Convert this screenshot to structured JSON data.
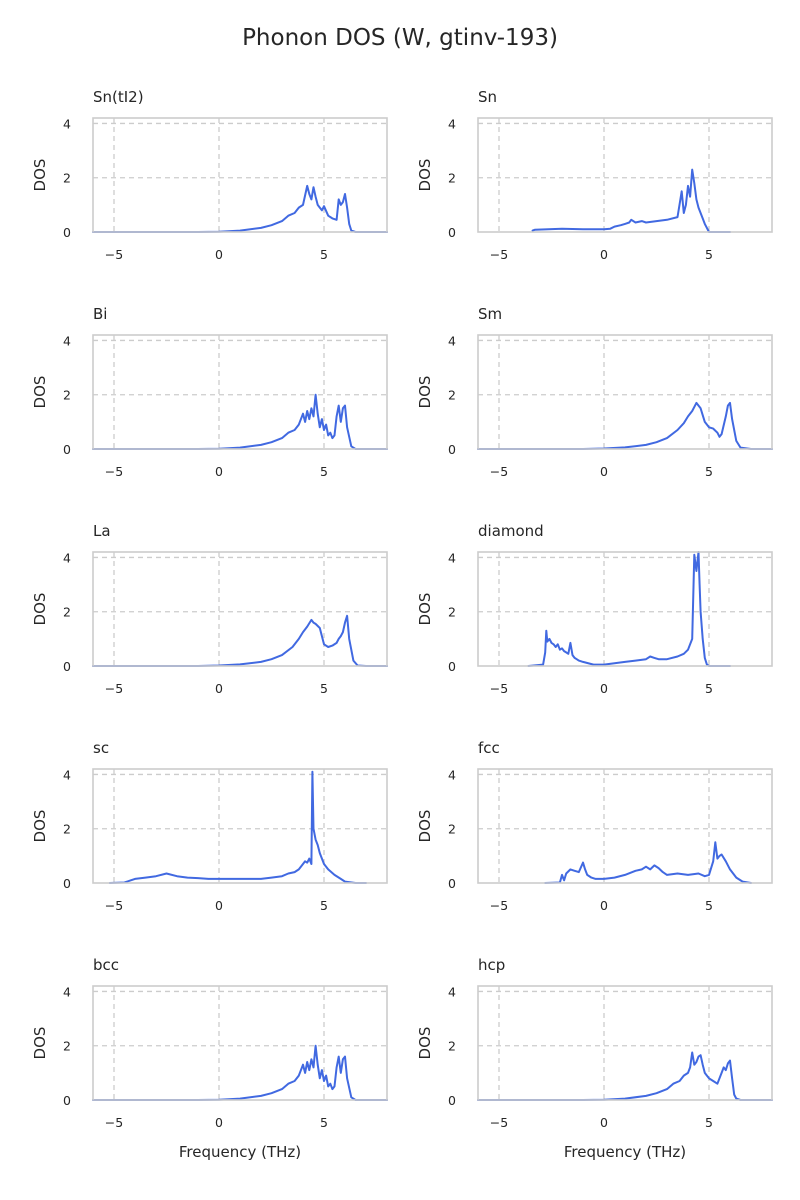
{
  "figure": {
    "title": "Phonon DOS (W, gtinv-193)"
  },
  "chart_data": [
    {
      "type": "line",
      "title": "Sn(tI2)",
      "ylabel": "DOS",
      "xlabel": "",
      "xlim": [
        -6,
        8
      ],
      "ylim": [
        0,
        4.2
      ],
      "xticks": [
        -5,
        0,
        5
      ],
      "yticks": [
        0,
        2,
        4
      ],
      "grid": true,
      "color": "#4169e1",
      "x": [
        -6,
        -1,
        0,
        1,
        2,
        2.5,
        3,
        3.3,
        3.6,
        3.8,
        4.0,
        4.2,
        4.3,
        4.4,
        4.5,
        4.6,
        4.7,
        4.8,
        4.9,
        5.0,
        5.2,
        5.4,
        5.6,
        5.7,
        5.8,
        5.9,
        6.0,
        6.1,
        6.2,
        6.3,
        6.5,
        7,
        8
      ],
      "y": [
        0,
        0,
        0.01,
        0.05,
        0.15,
        0.25,
        0.4,
        0.6,
        0.7,
        0.9,
        1.0,
        1.7,
        1.4,
        1.2,
        1.65,
        1.3,
        1.0,
        0.9,
        0.8,
        0.95,
        0.6,
        0.5,
        0.45,
        1.2,
        1.0,
        1.1,
        1.4,
        0.9,
        0.3,
        0.05,
        0,
        0,
        0
      ]
    },
    {
      "type": "line",
      "title": "Sn",
      "ylabel": "DOS",
      "xlabel": "",
      "xlim": [
        -6,
        8
      ],
      "ylim": [
        0,
        4.2
      ],
      "xticks": [
        -5,
        0,
        5
      ],
      "yticks": [
        0,
        2,
        4
      ],
      "grid": true,
      "color": "#4169e1",
      "x": [
        -3.4,
        -3.3,
        -2,
        -1,
        0,
        0.3,
        0.5,
        0.8,
        1.0,
        1.2,
        1.3,
        1.5,
        1.8,
        2,
        2.5,
        3,
        3.5,
        3.7,
        3.8,
        3.9,
        4.0,
        4.1,
        4.2,
        4.3,
        4.4,
        4.5,
        4.6,
        4.7,
        4.8,
        5.0,
        6.0
      ],
      "y": [
        0.05,
        0.08,
        0.12,
        0.1,
        0.1,
        0.12,
        0.2,
        0.25,
        0.3,
        0.35,
        0.45,
        0.35,
        0.4,
        0.35,
        0.4,
        0.45,
        0.55,
        1.5,
        0.7,
        1.0,
        1.7,
        1.3,
        2.3,
        1.8,
        1.2,
        0.9,
        0.7,
        0.5,
        0.3,
        0,
        0
      ]
    },
    {
      "type": "line",
      "title": "Bi",
      "ylabel": "DOS",
      "xlabel": "",
      "xlim": [
        -6,
        8
      ],
      "ylim": [
        0,
        4.2
      ],
      "xticks": [
        -5,
        0,
        5
      ],
      "yticks": [
        0,
        2,
        4
      ],
      "grid": true,
      "color": "#4169e1",
      "x": [
        -6,
        -1,
        0,
        1,
        2,
        2.5,
        3,
        3.3,
        3.6,
        3.8,
        4.0,
        4.1,
        4.2,
        4.3,
        4.4,
        4.5,
        4.6,
        4.7,
        4.8,
        4.9,
        5.0,
        5.1,
        5.2,
        5.3,
        5.4,
        5.5,
        5.6,
        5.7,
        5.8,
        5.9,
        6.0,
        6.1,
        6.3,
        6.5,
        7,
        8
      ],
      "y": [
        0,
        0,
        0.01,
        0.05,
        0.15,
        0.25,
        0.4,
        0.6,
        0.7,
        0.9,
        1.3,
        1.0,
        1.4,
        1.1,
        1.5,
        1.2,
        2.0,
        1.3,
        0.8,
        1.1,
        0.7,
        0.9,
        0.5,
        0.6,
        0.4,
        0.5,
        1.2,
        1.6,
        1.0,
        1.5,
        1.6,
        0.8,
        0.1,
        0,
        0,
        0
      ]
    },
    {
      "type": "line",
      "title": "Sm",
      "ylabel": "DOS",
      "xlabel": "",
      "xlim": [
        -6,
        8
      ],
      "ylim": [
        0,
        4.2
      ],
      "xticks": [
        -5,
        0,
        5
      ],
      "yticks": [
        0,
        2,
        4
      ],
      "grid": true,
      "color": "#4169e1",
      "x": [
        -6,
        -1,
        0,
        1,
        2,
        2.5,
        3,
        3.5,
        3.8,
        4.0,
        4.2,
        4.4,
        4.6,
        4.8,
        5.0,
        5.2,
        5.4,
        5.5,
        5.6,
        5.8,
        5.9,
        6.0,
        6.1,
        6.3,
        6.5,
        7,
        8
      ],
      "y": [
        0,
        0,
        0.02,
        0.06,
        0.15,
        0.25,
        0.4,
        0.7,
        0.95,
        1.2,
        1.4,
        1.7,
        1.5,
        1.0,
        0.8,
        0.75,
        0.6,
        0.45,
        0.55,
        1.2,
        1.6,
        1.7,
        1.1,
        0.3,
        0.05,
        0,
        0
      ]
    },
    {
      "type": "line",
      "title": "La",
      "ylabel": "DOS",
      "xlabel": "",
      "xlim": [
        -6,
        8
      ],
      "ylim": [
        0,
        4.2
      ],
      "xticks": [
        -5,
        0,
        5
      ],
      "yticks": [
        0,
        2,
        4
      ],
      "grid": true,
      "color": "#4169e1",
      "x": [
        -6,
        -1,
        0,
        1,
        2,
        2.5,
        3,
        3.5,
        3.8,
        4.0,
        4.2,
        4.4,
        4.5,
        4.6,
        4.8,
        5.0,
        5.2,
        5.4,
        5.6,
        5.7,
        5.8,
        5.9,
        6.0,
        6.1,
        6.2,
        6.4,
        6.6,
        7,
        8
      ],
      "y": [
        0,
        0,
        0.02,
        0.06,
        0.15,
        0.25,
        0.4,
        0.7,
        1.0,
        1.25,
        1.45,
        1.7,
        1.6,
        1.55,
        1.4,
        0.8,
        0.7,
        0.75,
        0.85,
        1.0,
        1.1,
        1.25,
        1.6,
        1.85,
        1.0,
        0.2,
        0.02,
        0,
        0
      ]
    },
    {
      "type": "line",
      "title": "diamond",
      "ylabel": "DOS",
      "xlabel": "",
      "xlim": [
        -6,
        8
      ],
      "ylim": [
        0,
        4.2
      ],
      "xticks": [
        -5,
        0,
        5
      ],
      "yticks": [
        0,
        2,
        4
      ],
      "grid": true,
      "color": "#4169e1",
      "x": [
        -3.6,
        -2.9,
        -2.8,
        -2.75,
        -2.7,
        -2.6,
        -2.5,
        -2.4,
        -2.3,
        -2.2,
        -2.1,
        -2.0,
        -1.9,
        -1.8,
        -1.7,
        -1.6,
        -1.5,
        -1.4,
        -1.3,
        -1.2,
        -1,
        -0.5,
        0,
        0.5,
        1.0,
        1.5,
        2.0,
        2.2,
        2.4,
        2.6,
        3.0,
        3.5,
        3.8,
        4.0,
        4.2,
        4.3,
        4.4,
        4.5,
        4.55,
        4.6,
        4.7,
        4.8,
        4.9,
        5.0,
        5.5,
        6.0
      ],
      "y": [
        0,
        0.05,
        0.5,
        1.3,
        0.9,
        1.0,
        0.85,
        0.8,
        0.7,
        0.8,
        0.6,
        0.65,
        0.55,
        0.5,
        0.45,
        0.85,
        0.4,
        0.3,
        0.25,
        0.2,
        0.15,
        0.05,
        0.05,
        0.1,
        0.15,
        0.2,
        0.25,
        0.35,
        0.3,
        0.25,
        0.25,
        0.35,
        0.45,
        0.6,
        1.0,
        4.1,
        3.5,
        4.3,
        3.0,
        2.0,
        1.0,
        0.3,
        0.05,
        0,
        0,
        0
      ]
    },
    {
      "type": "line",
      "title": "sc",
      "ylabel": "DOS",
      "xlabel": "",
      "xlim": [
        -6,
        8
      ],
      "ylim": [
        0,
        4.2
      ],
      "xticks": [
        -5,
        0,
        5
      ],
      "yticks": [
        0,
        2,
        4
      ],
      "grid": true,
      "color": "#4169e1",
      "x": [
        -5.2,
        -4.5,
        -4.2,
        -4,
        -3.5,
        -3,
        -2.5,
        -2,
        -1.5,
        -1,
        -0.5,
        0,
        0.5,
        1,
        1.5,
        2,
        2.5,
        3,
        3.3,
        3.6,
        3.8,
        4.0,
        4.1,
        4.2,
        4.3,
        4.4,
        4.45,
        4.5,
        4.6,
        4.7,
        4.8,
        5.0,
        5.2,
        5.5,
        5.8,
        6.0,
        6.5,
        7
      ],
      "y": [
        0,
        0.02,
        0.1,
        0.15,
        0.2,
        0.25,
        0.35,
        0.25,
        0.2,
        0.18,
        0.15,
        0.15,
        0.15,
        0.15,
        0.15,
        0.15,
        0.2,
        0.25,
        0.35,
        0.4,
        0.5,
        0.7,
        0.8,
        0.75,
        0.9,
        0.7,
        4.1,
        2.0,
        1.6,
        1.4,
        1.1,
        0.7,
        0.5,
        0.3,
        0.15,
        0.05,
        0,
        0
      ]
    },
    {
      "type": "line",
      "title": "fcc",
      "ylabel": "DOS",
      "xlabel": "",
      "xlim": [
        -6,
        8
      ],
      "ylim": [
        0,
        4.2
      ],
      "xticks": [
        -5,
        0,
        5
      ],
      "yticks": [
        0,
        2,
        4
      ],
      "grid": true,
      "color": "#4169e1",
      "x": [
        -2.8,
        -2.1,
        -2.0,
        -1.9,
        -1.8,
        -1.6,
        -1.4,
        -1.2,
        -1.0,
        -0.9,
        -0.8,
        -0.6,
        -0.4,
        -0.2,
        0,
        0.5,
        1,
        1.5,
        1.8,
        2,
        2.2,
        2.4,
        2.6,
        2.8,
        3,
        3.5,
        4,
        4.5,
        4.8,
        5.0,
        5.2,
        5.3,
        5.4,
        5.5,
        5.6,
        5.8,
        6.0,
        6.3,
        6.6,
        7
      ],
      "y": [
        0,
        0.02,
        0.3,
        0.1,
        0.35,
        0.5,
        0.45,
        0.4,
        0.75,
        0.5,
        0.3,
        0.2,
        0.15,
        0.15,
        0.15,
        0.2,
        0.3,
        0.45,
        0.5,
        0.6,
        0.5,
        0.65,
        0.55,
        0.4,
        0.3,
        0.35,
        0.3,
        0.35,
        0.25,
        0.3,
        0.8,
        1.5,
        0.9,
        1.0,
        1.05,
        0.8,
        0.5,
        0.2,
        0.05,
        0
      ]
    },
    {
      "type": "line",
      "title": "bcc",
      "ylabel": "DOS",
      "xlabel": "Frequency (THz)",
      "xlim": [
        -6,
        8
      ],
      "ylim": [
        0,
        4.2
      ],
      "xticks": [
        -5,
        0,
        5
      ],
      "yticks": [
        0,
        2,
        4
      ],
      "grid": true,
      "color": "#4169e1",
      "x": [
        -6,
        -1,
        0,
        1,
        2,
        2.5,
        3,
        3.3,
        3.6,
        3.8,
        4.0,
        4.1,
        4.2,
        4.3,
        4.4,
        4.5,
        4.6,
        4.7,
        4.8,
        4.9,
        5.0,
        5.1,
        5.2,
        5.3,
        5.4,
        5.5,
        5.6,
        5.7,
        5.8,
        5.9,
        6.0,
        6.1,
        6.3,
        6.5,
        7,
        8
      ],
      "y": [
        0,
        0,
        0.01,
        0.05,
        0.15,
        0.25,
        0.4,
        0.6,
        0.7,
        0.9,
        1.3,
        1.0,
        1.4,
        1.1,
        1.5,
        1.2,
        2.0,
        1.3,
        0.8,
        1.1,
        0.7,
        0.9,
        0.5,
        0.6,
        0.4,
        0.5,
        1.2,
        1.6,
        1.0,
        1.5,
        1.6,
        0.8,
        0.1,
        0,
        0,
        0
      ]
    },
    {
      "type": "line",
      "title": "hcp",
      "ylabel": "DOS",
      "xlabel": "Frequency (THz)",
      "xlim": [
        -6,
        8
      ],
      "ylim": [
        0,
        4.2
      ],
      "xticks": [
        -5,
        0,
        5
      ],
      "yticks": [
        0,
        2,
        4
      ],
      "grid": true,
      "color": "#4169e1",
      "x": [
        -6,
        -1,
        0,
        1,
        2,
        2.5,
        3,
        3.3,
        3.6,
        3.8,
        4.0,
        4.1,
        4.2,
        4.3,
        4.4,
        4.5,
        4.6,
        4.7,
        4.8,
        4.9,
        5.0,
        5.2,
        5.4,
        5.6,
        5.7,
        5.8,
        5.9,
        6.0,
        6.1,
        6.2,
        6.3,
        6.5,
        7,
        8
      ],
      "y": [
        0,
        0,
        0.01,
        0.05,
        0.15,
        0.25,
        0.4,
        0.6,
        0.7,
        0.9,
        1.0,
        1.2,
        1.75,
        1.3,
        1.4,
        1.6,
        1.65,
        1.3,
        1.0,
        0.9,
        0.8,
        0.7,
        0.6,
        1.0,
        1.2,
        1.1,
        1.35,
        1.45,
        0.8,
        0.2,
        0.05,
        0,
        0,
        0
      ]
    }
  ]
}
